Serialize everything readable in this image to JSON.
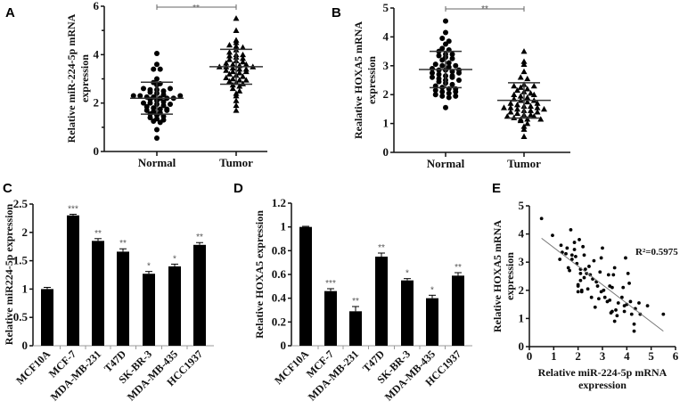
{
  "chart_data": [
    {
      "panel": "A",
      "type": "scatter",
      "ylabel_line1": "Relative miR-224-5p mRNA",
      "ylabel_line2": "expression",
      "categories": [
        "Normal",
        "Tumor"
      ],
      "ylim": [
        0,
        6
      ],
      "yticks": [
        "0",
        "2",
        "4",
        "6"
      ],
      "significance": "**",
      "series": [
        {
          "name": "Normal",
          "marker": "circle",
          "mean": 2.2,
          "sd": 0.66,
          "values": [
            4.05,
            3.6,
            3.4,
            3.4,
            3.0,
            2.85,
            2.8,
            2.75,
            2.6,
            2.55,
            2.55,
            2.5,
            2.45,
            2.4,
            2.35,
            2.3,
            2.3,
            2.25,
            2.25,
            2.2,
            2.2,
            2.2,
            2.15,
            2.1,
            2.05,
            2.0,
            2.0,
            1.95,
            1.9,
            1.85,
            1.8,
            1.75,
            1.75,
            1.7,
            1.65,
            1.6,
            1.55,
            1.5,
            1.45,
            1.4,
            1.35,
            1.3,
            1.25,
            1.2,
            0.9,
            0.55,
            2.6,
            2.3,
            1.95,
            1.7
          ]
        },
        {
          "name": "Tumor",
          "marker": "triangle",
          "mean": 3.5,
          "sd": 0.72,
          "values": [
            5.5,
            5.0,
            4.6,
            4.5,
            4.4,
            4.35,
            4.3,
            4.2,
            4.1,
            4.0,
            3.95,
            3.9,
            3.85,
            3.8,
            3.75,
            3.7,
            3.65,
            3.6,
            3.55,
            3.5,
            3.5,
            3.45,
            3.4,
            3.4,
            3.35,
            3.3,
            3.25,
            3.2,
            3.15,
            3.1,
            3.05,
            3.0,
            2.95,
            2.9,
            2.85,
            2.8,
            2.75,
            2.7,
            2.6,
            2.5,
            2.4,
            2.3,
            2.1,
            1.9,
            1.7,
            3.5,
            3.6,
            3.3,
            4.0,
            2.95
          ]
        }
      ]
    },
    {
      "panel": "B",
      "type": "scatter",
      "ylabel_line1": "Realative HOXA5 mRNA",
      "ylabel_line2": "expression",
      "categories": [
        "Normal",
        "Tumor"
      ],
      "ylim": [
        0,
        5
      ],
      "yticks": [
        "0",
        "1",
        "2",
        "3",
        "4",
        "5"
      ],
      "significance": "**",
      "series": [
        {
          "name": "Normal",
          "marker": "circle",
          "mean": 2.87,
          "sd": 0.63,
          "values": [
            4.55,
            4.15,
            3.95,
            3.85,
            3.75,
            3.6,
            3.55,
            3.5,
            3.4,
            3.35,
            3.3,
            3.25,
            3.2,
            3.1,
            3.05,
            3.0,
            2.95,
            2.9,
            2.85,
            2.85,
            2.8,
            2.75,
            2.7,
            2.65,
            2.65,
            2.6,
            2.55,
            2.5,
            2.45,
            2.4,
            2.35,
            2.3,
            2.25,
            2.2,
            2.15,
            2.1,
            2.05,
            2.0,
            1.95,
            1.9,
            1.55,
            2.85,
            3.0,
            2.6,
            2.2,
            2.1,
            1.95,
            3.4,
            2.5,
            2.75
          ]
        },
        {
          "name": "Tumor",
          "marker": "triangle",
          "mean": 1.8,
          "sd": 0.61,
          "values": [
            3.5,
            3.15,
            3.05,
            2.8,
            2.6,
            2.55,
            2.35,
            2.3,
            2.25,
            2.2,
            2.15,
            2.1,
            2.05,
            2.0,
            1.95,
            1.9,
            1.85,
            1.8,
            1.75,
            1.7,
            1.65,
            1.6,
            1.55,
            1.55,
            1.5,
            1.45,
            1.45,
            1.4,
            1.35,
            1.3,
            1.3,
            1.25,
            1.2,
            1.15,
            1.15,
            1.1,
            1.0,
            0.9,
            0.8,
            0.55,
            1.8,
            1.6,
            1.4,
            2.3,
            1.25,
            1.55,
            1.7,
            2.0,
            1.5,
            1.15
          ]
        }
      ]
    },
    {
      "panel": "C",
      "type": "bar",
      "ylabel": "Relative miR224-5p expression",
      "categories": [
        "MCF10A",
        "MCF-7",
        "MDA-MB-231",
        "T47D",
        "SK-BR-3",
        "MDA-MB-435",
        "HCC1937"
      ],
      "values": [
        1.0,
        2.3,
        1.85,
        1.66,
        1.27,
        1.4,
        1.78
      ],
      "errors": [
        0.03,
        0.02,
        0.04,
        0.05,
        0.04,
        0.04,
        0.04
      ],
      "significance": [
        "",
        "***",
        "**",
        "**",
        "*",
        "*",
        "**"
      ],
      "ylim": [
        0,
        2.5
      ],
      "yticks": [
        "0",
        "0.5",
        "1",
        "1.5",
        "2",
        "2.5"
      ]
    },
    {
      "panel": "D",
      "type": "bar",
      "ylabel": "Relative HOXA5 expression",
      "categories": [
        "MCF10A",
        "MCF-7",
        "MDA-MB-231",
        "T47D",
        "SK-BR-3",
        "MDA-MB-435",
        "HCC1937"
      ],
      "values": [
        1.0,
        0.46,
        0.29,
        0.75,
        0.55,
        0.4,
        0.59
      ],
      "errors": [
        0.005,
        0.02,
        0.04,
        0.03,
        0.015,
        0.025,
        0.025
      ],
      "significance": [
        "",
        "***",
        "**",
        "**",
        "*",
        "*",
        "**"
      ],
      "ylim": [
        0,
        1.2
      ],
      "yticks": [
        "0",
        "0.2",
        "0.4",
        "0.6",
        "0.8",
        "1",
        "1.2"
      ]
    },
    {
      "panel": "E",
      "type": "scatter",
      "xlabel_line1": "Relative miR-224-5p mRNA",
      "xlabel_line2": "expression",
      "ylabel_line1": "Relative HOXA5 mRNA",
      "ylabel_line2": "expression",
      "xlim": [
        0,
        6
      ],
      "ylim": [
        0,
        5
      ],
      "xticks": [
        "0",
        "1",
        "2",
        "3",
        "4",
        "5",
        "6"
      ],
      "yticks": [
        "0",
        "1",
        "2",
        "3",
        "4",
        "5"
      ],
      "annotation": "R²=0.5975",
      "fit_line": [
        [
          0.5,
          3.85
        ],
        [
          5.5,
          0.55
        ]
      ],
      "points": [
        [
          0.5,
          4.55
        ],
        [
          0.95,
          3.95
        ],
        [
          1.25,
          3.1
        ],
        [
          1.3,
          3.6
        ],
        [
          1.35,
          3.35
        ],
        [
          1.5,
          3.3
        ],
        [
          1.55,
          3.5
        ],
        [
          1.6,
          2.8
        ],
        [
          1.65,
          2.7
        ],
        [
          1.7,
          4.15
        ],
        [
          1.75,
          3.25
        ],
        [
          1.75,
          3.1
        ],
        [
          1.85,
          3.7
        ],
        [
          1.85,
          3.45
        ],
        [
          1.9,
          3.2
        ],
        [
          1.95,
          2.95
        ],
        [
          2.0,
          2.2
        ],
        [
          2.0,
          2.15
        ],
        [
          2.05,
          3.8
        ],
        [
          2.1,
          2.75
        ],
        [
          2.1,
          2.6
        ],
        [
          2.1,
          2.35
        ],
        [
          2.15,
          2.0
        ],
        [
          2.15,
          1.95
        ],
        [
          2.2,
          3.55
        ],
        [
          2.25,
          3.25
        ],
        [
          2.25,
          2.45
        ],
        [
          2.3,
          2.75
        ],
        [
          2.35,
          2.6
        ],
        [
          2.4,
          2.05
        ],
        [
          2.45,
          2.85
        ],
        [
          2.5,
          2.55
        ],
        [
          2.55,
          1.75
        ],
        [
          2.6,
          2.4
        ],
        [
          2.65,
          3.05
        ],
        [
          2.7,
          1.4
        ],
        [
          2.75,
          2.3
        ],
        [
          2.8,
          2.15
        ],
        [
          2.85,
          1.7
        ],
        [
          2.9,
          2.65
        ],
        [
          2.95,
          3.15
        ],
        [
          2.95,
          1.95
        ],
        [
          3.0,
          3.5
        ],
        [
          3.05,
          2.0
        ],
        [
          3.1,
          1.75
        ],
        [
          3.2,
          1.6
        ],
        [
          3.25,
          2.55
        ],
        [
          3.3,
          2.15
        ],
        [
          3.3,
          1.65
        ],
        [
          3.35,
          1.2
        ],
        [
          3.4,
          2.1
        ],
        [
          3.45,
          2.55
        ],
        [
          3.5,
          0.9
        ],
        [
          3.5,
          2.8
        ],
        [
          3.55,
          1.3
        ],
        [
          3.6,
          1.1
        ],
        [
          3.65,
          1.55
        ],
        [
          3.8,
          1.75
        ],
        [
          3.85,
          2.1
        ],
        [
          3.9,
          1.45
        ],
        [
          3.95,
          3.15
        ],
        [
          4.0,
          1.5
        ],
        [
          4.05,
          2.6
        ],
        [
          4.1,
          2.25
        ],
        [
          4.15,
          1.6
        ],
        [
          4.2,
          1.15
        ],
        [
          4.3,
          0.55
        ],
        [
          4.3,
          0.8
        ],
        [
          4.35,
          1.35
        ],
        [
          4.5,
          1.55
        ],
        [
          4.55,
          1.15
        ],
        [
          4.85,
          1.45
        ],
        [
          5.5,
          1.15
        ],
        [
          3.9,
          1.25
        ],
        [
          3.4,
          1.25
        ],
        [
          2.0,
          1.95
        ]
      ]
    }
  ]
}
